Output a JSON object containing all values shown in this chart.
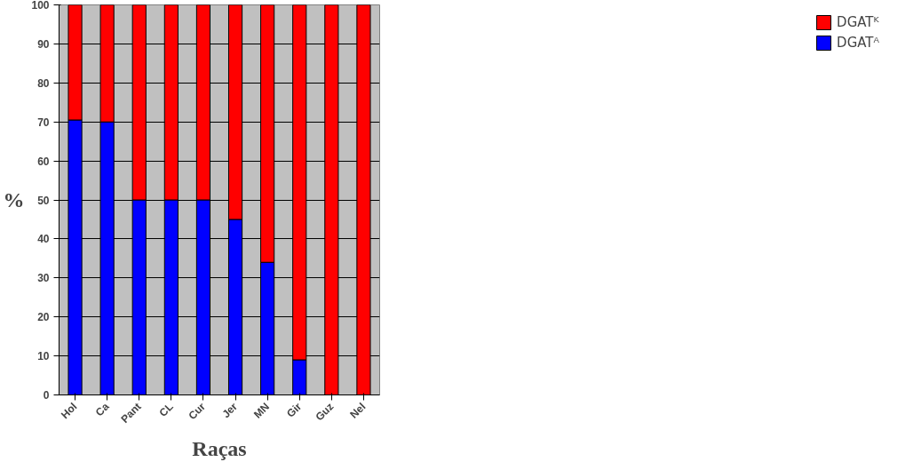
{
  "chart_data": {
    "type": "bar",
    "stacked": true,
    "xlabel": "Raças",
    "ylabel": "%",
    "categories": [
      "Hol",
      "Ca",
      "Pant",
      "CL",
      "Cur",
      "Jer",
      "MN",
      "Gir",
      "Guz",
      "Nel"
    ],
    "series": [
      {
        "name": "DGATᴬ",
        "color": "#0000ff",
        "values": [
          70.5,
          70,
          50,
          50,
          50,
          45,
          34,
          9,
          0,
          0
        ]
      },
      {
        "name": "DGATᴷ",
        "color": "#ff0000",
        "values": [
          29.5,
          30,
          50,
          50,
          50,
          55,
          66,
          91,
          100,
          100
        ]
      }
    ],
    "ylim": [
      0,
      100
    ],
    "yticks": [
      0,
      10,
      20,
      30,
      40,
      50,
      60,
      70,
      80,
      90,
      100
    ],
    "grid": "y",
    "legend": "top right"
  }
}
